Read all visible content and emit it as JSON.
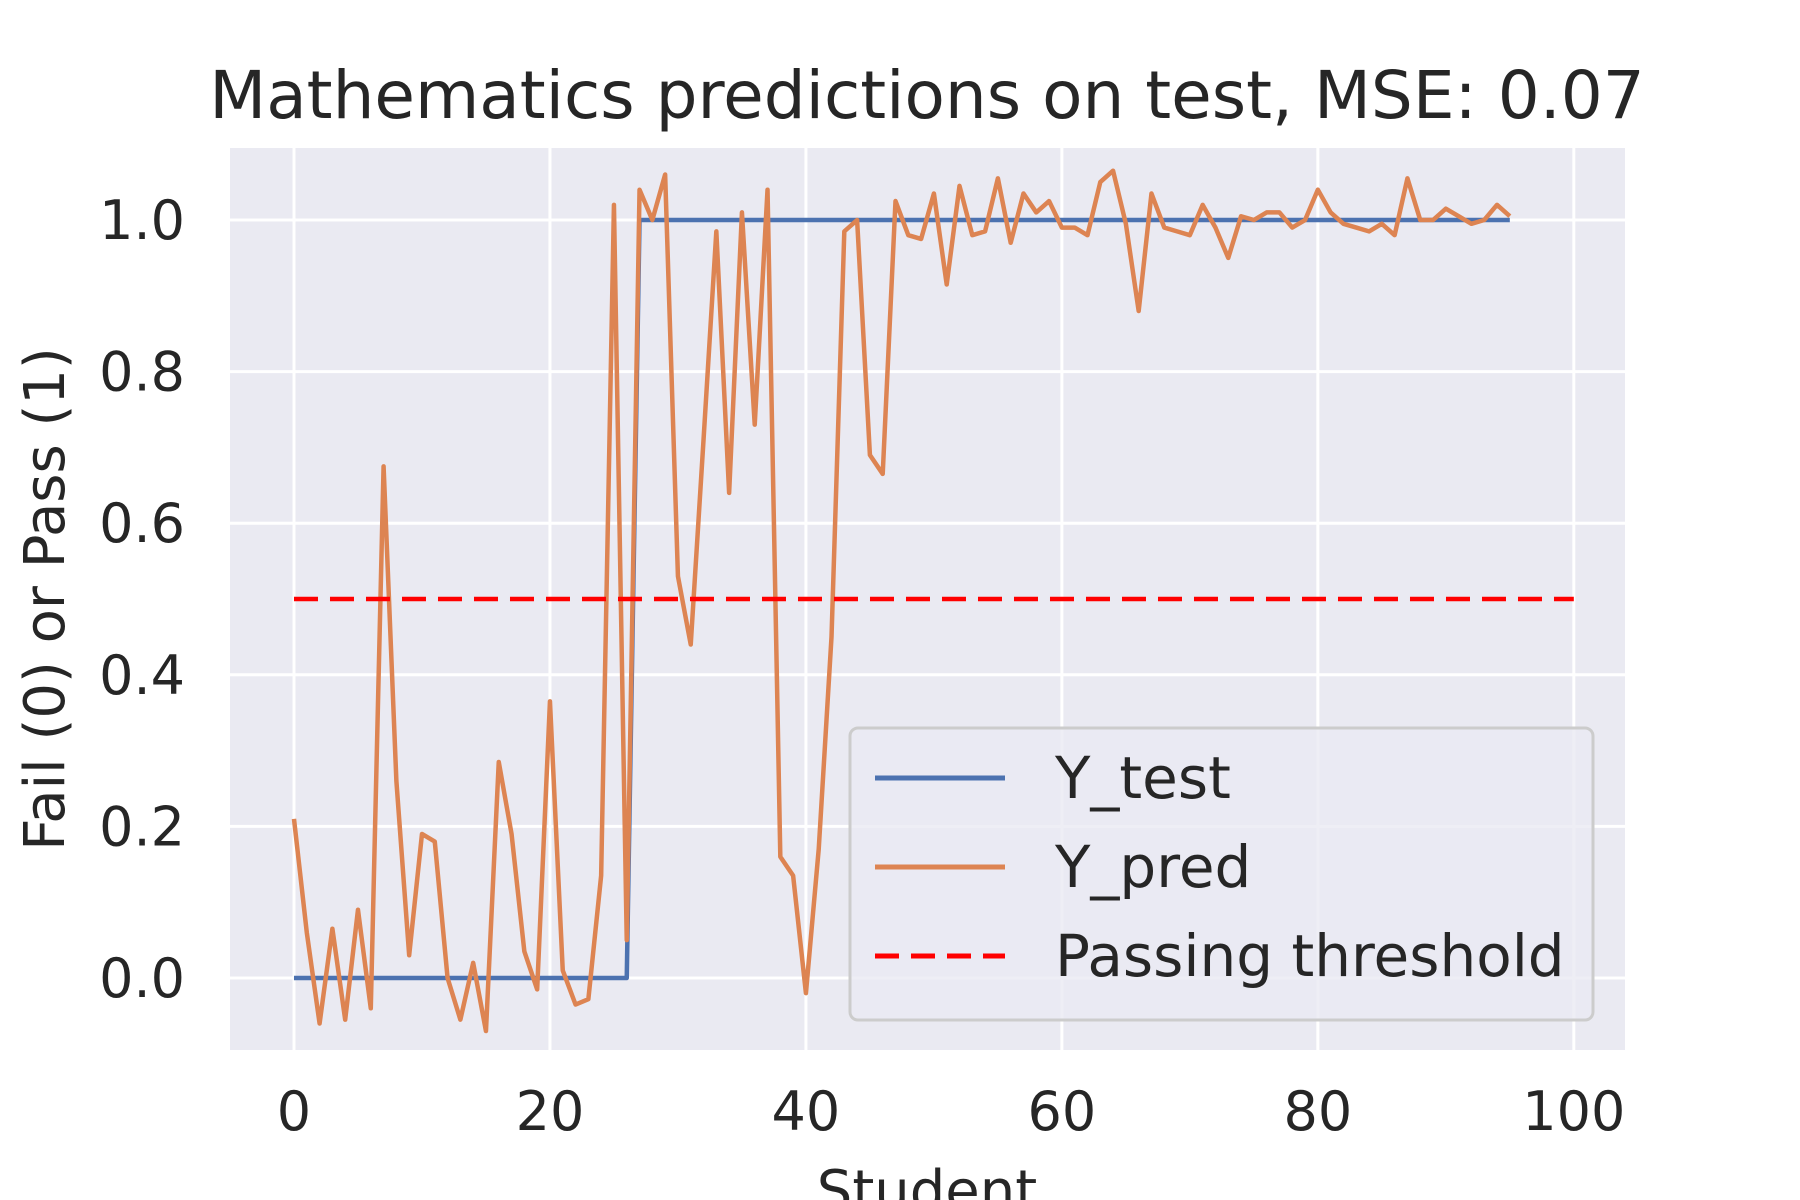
{
  "chart_data": {
    "type": "line",
    "title": "Mathematics predictions on test, MSE: 0.07",
    "xlabel": "Student",
    "ylabel": "Fail (0) or Pass (1)",
    "xlim": [
      -5,
      104
    ],
    "ylim": [
      -0.095,
      1.095
    ],
    "xticks": [
      0,
      20,
      40,
      60,
      80,
      100
    ],
    "yticks": [
      0.0,
      0.2,
      0.4,
      0.6,
      0.8,
      1.0
    ],
    "xtick_labels": [
      "0",
      "20",
      "40",
      "60",
      "80",
      "100"
    ],
    "ytick_labels": [
      "0.0",
      "0.2",
      "0.4",
      "0.6",
      "0.8",
      "1.0"
    ],
    "grid": true,
    "legend_position": "lower-right",
    "colors": {
      "background": "#eaeaf2",
      "grid": "#ffffff",
      "y_test": "#4c72b0",
      "y_pred": "#dd8452",
      "threshold": "#ff0000"
    },
    "series": [
      {
        "name": "Y_test",
        "style": "solid",
        "color": "#4c72b0",
        "x": [
          0,
          26,
          27,
          95
        ],
        "y": [
          0,
          0,
          1,
          1
        ]
      },
      {
        "name": "Y_pred",
        "style": "solid",
        "color": "#dd8452",
        "x": [
          0,
          1,
          2,
          3,
          4,
          5,
          6,
          7,
          8,
          9,
          10,
          11,
          12,
          13,
          14,
          15,
          16,
          17,
          18,
          19,
          20,
          21,
          22,
          23,
          24,
          25,
          26,
          27,
          28,
          29,
          30,
          31,
          32,
          33,
          34,
          35,
          36,
          37,
          38,
          39,
          40,
          41,
          42,
          43,
          44,
          45,
          46,
          47,
          48,
          49,
          50,
          51,
          52,
          53,
          54,
          55,
          56,
          57,
          58,
          59,
          60,
          61,
          62,
          63,
          64,
          65,
          66,
          67,
          68,
          69,
          70,
          71,
          72,
          73,
          74,
          75,
          76,
          77,
          78,
          79,
          80,
          81,
          82,
          83,
          84,
          85,
          86,
          87,
          88,
          89,
          90,
          91,
          92,
          93,
          94,
          95
        ],
        "y": [
          0.21,
          0.06,
          -0.06,
          0.065,
          -0.055,
          0.09,
          -0.04,
          0.675,
          0.26,
          0.03,
          0.19,
          0.18,
          0.0,
          -0.055,
          0.02,
          -0.07,
          0.285,
          0.19,
          0.035,
          -0.015,
          0.365,
          0.01,
          -0.035,
          -0.028,
          0.135,
          1.02,
          0.05,
          1.04,
          1.0,
          1.06,
          0.53,
          0.44,
          0.71,
          0.985,
          0.64,
          1.01,
          0.73,
          1.04,
          0.16,
          0.135,
          -0.02,
          0.17,
          0.45,
          0.985,
          1.0,
          0.69,
          0.665,
          1.025,
          0.98,
          0.975,
          1.035,
          0.915,
          1.045,
          0.98,
          0.985,
          1.055,
          0.97,
          1.035,
          1.01,
          1.025,
          0.99,
          0.99,
          0.98,
          1.05,
          1.065,
          0.995,
          0.88,
          1.035,
          0.99,
          0.985,
          0.98,
          1.02,
          0.99,
          0.95,
          1.005,
          1.0,
          1.01,
          1.01,
          0.99,
          1.0,
          1.04,
          1.01,
          0.995,
          0.99,
          0.985,
          0.995,
          0.98,
          1.055,
          1.0,
          1.0,
          1.015,
          1.005,
          0.995,
          1.0,
          1.02,
          1.005
        ]
      },
      {
        "name": "Passing threshold",
        "style": "dashed",
        "color": "#ff0000",
        "x": [
          0,
          100
        ],
        "y": [
          0.5,
          0.5
        ]
      }
    ]
  }
}
